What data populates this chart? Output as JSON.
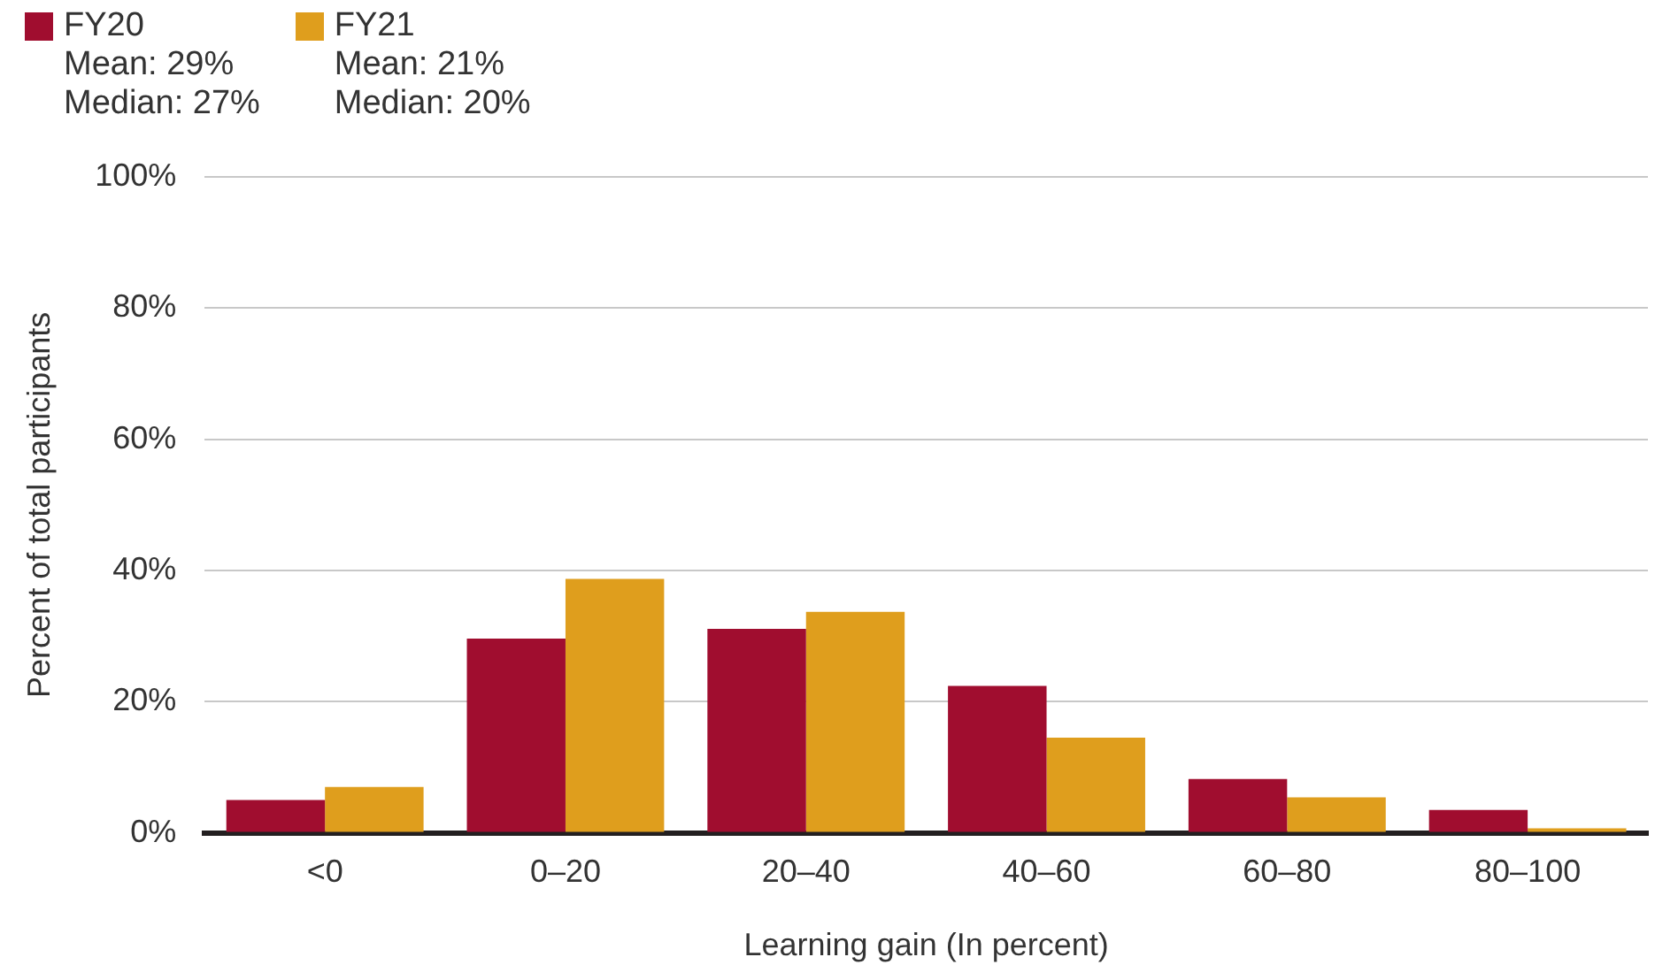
{
  "chart_data": {
    "type": "bar",
    "xlabel": "Learning gain (In percent)",
    "ylabel": "Percent of total participants",
    "categories": [
      "<0",
      "0–20",
      "20–40",
      "40–60",
      "60–80",
      "80–100"
    ],
    "series": [
      {
        "name": "FY20",
        "color": "#a00d2f",
        "values": [
          5,
          29.6,
          31.1,
          22.4,
          8.2,
          3.5
        ]
      },
      {
        "name": "FY21",
        "color": "#df9e1d",
        "values": [
          7,
          38.7,
          33.7,
          14.5,
          5.4,
          0.7
        ]
      }
    ],
    "annotations": [
      "Mean: 29%",
      "Median: 27%",
      "Mean: 21%",
      "Median: 20%"
    ],
    "ylim": [
      0,
      100
    ],
    "yticks": [
      {
        "value": 0,
        "label": "0%"
      },
      {
        "value": 20,
        "label": "20%"
      },
      {
        "value": 40,
        "label": "40%"
      },
      {
        "value": 60,
        "label": "60%"
      },
      {
        "value": 80,
        "label": "80%"
      },
      {
        "value": 100,
        "label": "100%"
      }
    ],
    "grid": "y",
    "legend": "top left"
  }
}
